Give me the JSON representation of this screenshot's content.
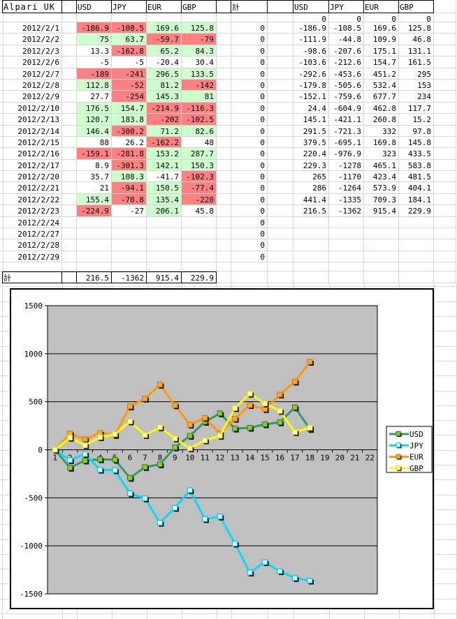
{
  "sheet": {
    "title_cell": "Alpari UK",
    "total_col_header": "計",
    "total_row_label": "計",
    "columns_left": [
      "USD",
      "JPY",
      "EUR",
      "GBP"
    ],
    "columns_right": [
      "USD",
      "JPY",
      "EUR",
      "GBP"
    ],
    "zero_row": {
      "cum": [
        "0",
        "0",
        "0",
        "0"
      ]
    },
    "rows": [
      {
        "date": "2012/2/1",
        "daily": [
          {
            "v": "-186.9",
            "bg": "neg"
          },
          {
            "v": "-108.5",
            "bg": "neg"
          },
          {
            "v": "169.6",
            "bg": "pos"
          },
          {
            "v": "125.8",
            "bg": "pos"
          }
        ],
        "total": "0",
        "cum": [
          "-186.9",
          "-108.5",
          "169.6",
          "125.8"
        ]
      },
      {
        "date": "2012/2/2",
        "daily": [
          {
            "v": "75",
            "bg": "pos"
          },
          {
            "v": "63.7",
            "bg": "pos"
          },
          {
            "v": "-59.7",
            "bg": "neg"
          },
          {
            "v": "-79",
            "bg": "neg"
          }
        ],
        "total": "0",
        "cum": [
          "-111.9",
          "-44.8",
          "109.9",
          "46.8"
        ]
      },
      {
        "date": "2012/2/3",
        "daily": [
          {
            "v": "13.3",
            "bg": ""
          },
          {
            "v": "-162.8",
            "bg": "neg"
          },
          {
            "v": "65.2",
            "bg": "pos"
          },
          {
            "v": "84.3",
            "bg": "pos"
          }
        ],
        "total": "0",
        "cum": [
          "-98.6",
          "-207.6",
          "175.1",
          "131.1"
        ]
      },
      {
        "date": "2012/2/6",
        "daily": [
          {
            "v": "-5",
            "bg": ""
          },
          {
            "v": "-5",
            "bg": ""
          },
          {
            "v": "-20.4",
            "bg": ""
          },
          {
            "v": "30.4",
            "bg": ""
          }
        ],
        "total": "0",
        "cum": [
          "-103.6",
          "-212.6",
          "154.7",
          "161.5"
        ]
      },
      {
        "date": "2012/2/7",
        "daily": [
          {
            "v": "-189",
            "bg": "neg"
          },
          {
            "v": "-241",
            "bg": "neg"
          },
          {
            "v": "296.5",
            "bg": "pos"
          },
          {
            "v": "133.5",
            "bg": "pos"
          }
        ],
        "total": "0",
        "cum": [
          "-292.6",
          "-453.6",
          "451.2",
          "295"
        ]
      },
      {
        "date": "2012/2/8",
        "daily": [
          {
            "v": "112.8",
            "bg": "pos"
          },
          {
            "v": "-52",
            "bg": "neg"
          },
          {
            "v": "81.2",
            "bg": "pos"
          },
          {
            "v": "-142",
            "bg": "neg"
          }
        ],
        "total": "0",
        "cum": [
          "-179.8",
          "-505.6",
          "532.4",
          "153"
        ]
      },
      {
        "date": "2012/2/9",
        "daily": [
          {
            "v": "27.7",
            "bg": ""
          },
          {
            "v": "-254",
            "bg": "neg"
          },
          {
            "v": "145.3",
            "bg": "pos"
          },
          {
            "v": "81",
            "bg": "pos"
          }
        ],
        "total": "0",
        "cum": [
          "-152.1",
          "-759.6",
          "677.7",
          "234"
        ]
      },
      {
        "date": "2012/2/10",
        "daily": [
          {
            "v": "176.5",
            "bg": "pos"
          },
          {
            "v": "154.7",
            "bg": "pos"
          },
          {
            "v": "-214.9",
            "bg": "neg"
          },
          {
            "v": "-116.3",
            "bg": "neg"
          }
        ],
        "total": "0",
        "cum": [
          "24.4",
          "-604.9",
          "462.8",
          "117.7"
        ]
      },
      {
        "date": "2012/2/13",
        "daily": [
          {
            "v": "120.7",
            "bg": "pos"
          },
          {
            "v": "183.8",
            "bg": "pos"
          },
          {
            "v": "-202",
            "bg": "neg"
          },
          {
            "v": "-102.5",
            "bg": "neg"
          }
        ],
        "total": "0",
        "cum": [
          "145.1",
          "-421.1",
          "260.8",
          "15.2"
        ]
      },
      {
        "date": "2012/2/14",
        "daily": [
          {
            "v": "146.4",
            "bg": "pos"
          },
          {
            "v": "-300.2",
            "bg": "neg"
          },
          {
            "v": "71.2",
            "bg": "pos"
          },
          {
            "v": "82.6",
            "bg": "pos"
          }
        ],
        "total": "0",
        "cum": [
          "291.5",
          "-721.3",
          "332",
          "97.8"
        ]
      },
      {
        "date": "2012/2/15",
        "daily": [
          {
            "v": "88",
            "bg": ""
          },
          {
            "v": "26.2",
            "bg": ""
          },
          {
            "v": "-162.2",
            "bg": "neg"
          },
          {
            "v": "48",
            "bg": ""
          }
        ],
        "total": "0",
        "cum": [
          "379.5",
          "-695.1",
          "169.8",
          "145.8"
        ]
      },
      {
        "date": "2012/2/16",
        "daily": [
          {
            "v": "-159.1",
            "bg": "neg"
          },
          {
            "v": "-281.8",
            "bg": "neg"
          },
          {
            "v": "153.2",
            "bg": "pos"
          },
          {
            "v": "287.7",
            "bg": "pos"
          }
        ],
        "total": "0",
        "cum": [
          "220.4",
          "-976.9",
          "323",
          "433.5"
        ]
      },
      {
        "date": "2012/2/17",
        "daily": [
          {
            "v": "8.9",
            "bg": ""
          },
          {
            "v": "-301.3",
            "bg": "neg"
          },
          {
            "v": "142.1",
            "bg": "pos"
          },
          {
            "v": "150.3",
            "bg": "pos"
          }
        ],
        "total": "0",
        "cum": [
          "229.3",
          "-1278",
          "465.1",
          "583.8"
        ]
      },
      {
        "date": "2012/2/20",
        "daily": [
          {
            "v": "35.7",
            "bg": ""
          },
          {
            "v": "108.3",
            "bg": "pos"
          },
          {
            "v": "-41.7",
            "bg": ""
          },
          {
            "v": "-102.3",
            "bg": "neg"
          }
        ],
        "total": "0",
        "cum": [
          "265",
          "-1170",
          "423.4",
          "481.5"
        ]
      },
      {
        "date": "2012/2/21",
        "daily": [
          {
            "v": "21",
            "bg": ""
          },
          {
            "v": "-94.1",
            "bg": "neg"
          },
          {
            "v": "150.5",
            "bg": "pos"
          },
          {
            "v": "-77.4",
            "bg": "neg"
          }
        ],
        "total": "0",
        "cum": [
          "286",
          "-1264",
          "573.9",
          "404.1"
        ]
      },
      {
        "date": "2012/2/22",
        "daily": [
          {
            "v": "155.4",
            "bg": "pos"
          },
          {
            "v": "-70.8",
            "bg": "neg"
          },
          {
            "v": "135.4",
            "bg": "pos"
          },
          {
            "v": "-220",
            "bg": "neg"
          }
        ],
        "total": "0",
        "cum": [
          "441.4",
          "-1335",
          "709.3",
          "184.1"
        ]
      },
      {
        "date": "2012/2/23",
        "daily": [
          {
            "v": "-224.9",
            "bg": "neg"
          },
          {
            "v": "-27",
            "bg": ""
          },
          {
            "v": "206.1",
            "bg": "pos"
          },
          {
            "v": "45.8",
            "bg": ""
          }
        ],
        "total": "0",
        "cum": [
          "216.5",
          "-1362",
          "915.4",
          "229.9"
        ]
      },
      {
        "date": "2012/2/24",
        "daily": [
          {
            "v": "",
            "bg": ""
          },
          {
            "v": "",
            "bg": ""
          },
          {
            "v": "",
            "bg": ""
          },
          {
            "v": "",
            "bg": ""
          }
        ],
        "total": "0",
        "cum": [
          "",
          "",
          "",
          ""
        ]
      },
      {
        "date": "2012/2/27",
        "daily": [
          {
            "v": "",
            "bg": ""
          },
          {
            "v": "",
            "bg": ""
          },
          {
            "v": "",
            "bg": ""
          },
          {
            "v": "",
            "bg": ""
          }
        ],
        "total": "0",
        "cum": [
          "",
          "",
          "",
          ""
        ]
      },
      {
        "date": "2012/2/28",
        "daily": [
          {
            "v": "",
            "bg": ""
          },
          {
            "v": "",
            "bg": ""
          },
          {
            "v": "",
            "bg": ""
          },
          {
            "v": "",
            "bg": ""
          }
        ],
        "total": "0",
        "cum": [
          "",
          "",
          "",
          ""
        ]
      },
      {
        "date": "2012/2/29",
        "daily": [
          {
            "v": "",
            "bg": ""
          },
          {
            "v": "",
            "bg": ""
          },
          {
            "v": "",
            "bg": ""
          },
          {
            "v": "",
            "bg": ""
          }
        ],
        "total": "0",
        "cum": [
          "",
          "",
          "",
          ""
        ]
      }
    ],
    "totals": [
      "216.5",
      "-1362",
      "915.4",
      "229.9"
    ],
    "colors": {
      "negative_fill": "#ff8080",
      "positive_fill": "#ccffcc",
      "gridline": "#d6d6d6"
    }
  },
  "chart_data": {
    "type": "line",
    "title": "",
    "xlabel": "",
    "ylabel": "",
    "x_categories": [
      "1",
      "2",
      "3",
      "4",
      "5",
      "6",
      "7",
      "8",
      "9",
      "10",
      "11",
      "12",
      "13",
      "14",
      "15",
      "16",
      "17",
      "18",
      "19",
      "20",
      "21",
      "22"
    ],
    "y_tick_labels": [
      "-1500",
      "-1000",
      "-500",
      "0",
      "500",
      "1000",
      "1500"
    ],
    "ylim": [
      -1500,
      1500
    ],
    "ytick": 500,
    "grid": true,
    "plot_bg": "#c0c0c0",
    "legend_position": "right",
    "series": [
      {
        "name": "USD",
        "line_color": "#339966",
        "marker_fill": "#99cc00",
        "marker_border": "#1f7a4d",
        "values": [
          0,
          -186.9,
          -111.9,
          -98.6,
          -103.6,
          -292.6,
          -179.8,
          -152.1,
          24.4,
          145.1,
          291.5,
          379.5,
          220.4,
          229.3,
          265,
          286,
          441.4,
          216.5
        ]
      },
      {
        "name": "JPY",
        "line_color": "#00ddff",
        "marker_fill": "#ccffff",
        "marker_border": "#00bbdd",
        "values": [
          0,
          -108.5,
          -44.8,
          -207.6,
          -212.6,
          -453.6,
          -505.6,
          -759.6,
          -604.9,
          -421.1,
          -721.3,
          -695.1,
          -976.9,
          -1278,
          -1170,
          -1264,
          -1335,
          -1362
        ]
      },
      {
        "name": "EUR",
        "line_color": "#ff9900",
        "marker_fill": "#ffaa22",
        "marker_border": "#cc7700",
        "values": [
          0,
          169.6,
          109.9,
          175.1,
          154.7,
          451.2,
          532.4,
          677.7,
          462.8,
          260.8,
          332,
          169.8,
          323,
          465.1,
          423.4,
          573.9,
          709.3,
          915.4
        ]
      },
      {
        "name": "GBP",
        "line_color": "#ffff00",
        "marker_fill": "#ffffaa",
        "marker_border": "#e6d800",
        "values": [
          0,
          125.8,
          46.8,
          131.1,
          161.5,
          295,
          153,
          234,
          117.7,
          15.2,
          97.8,
          145.8,
          433.5,
          583.8,
          481.5,
          404.1,
          184.1,
          229.9
        ]
      }
    ]
  }
}
